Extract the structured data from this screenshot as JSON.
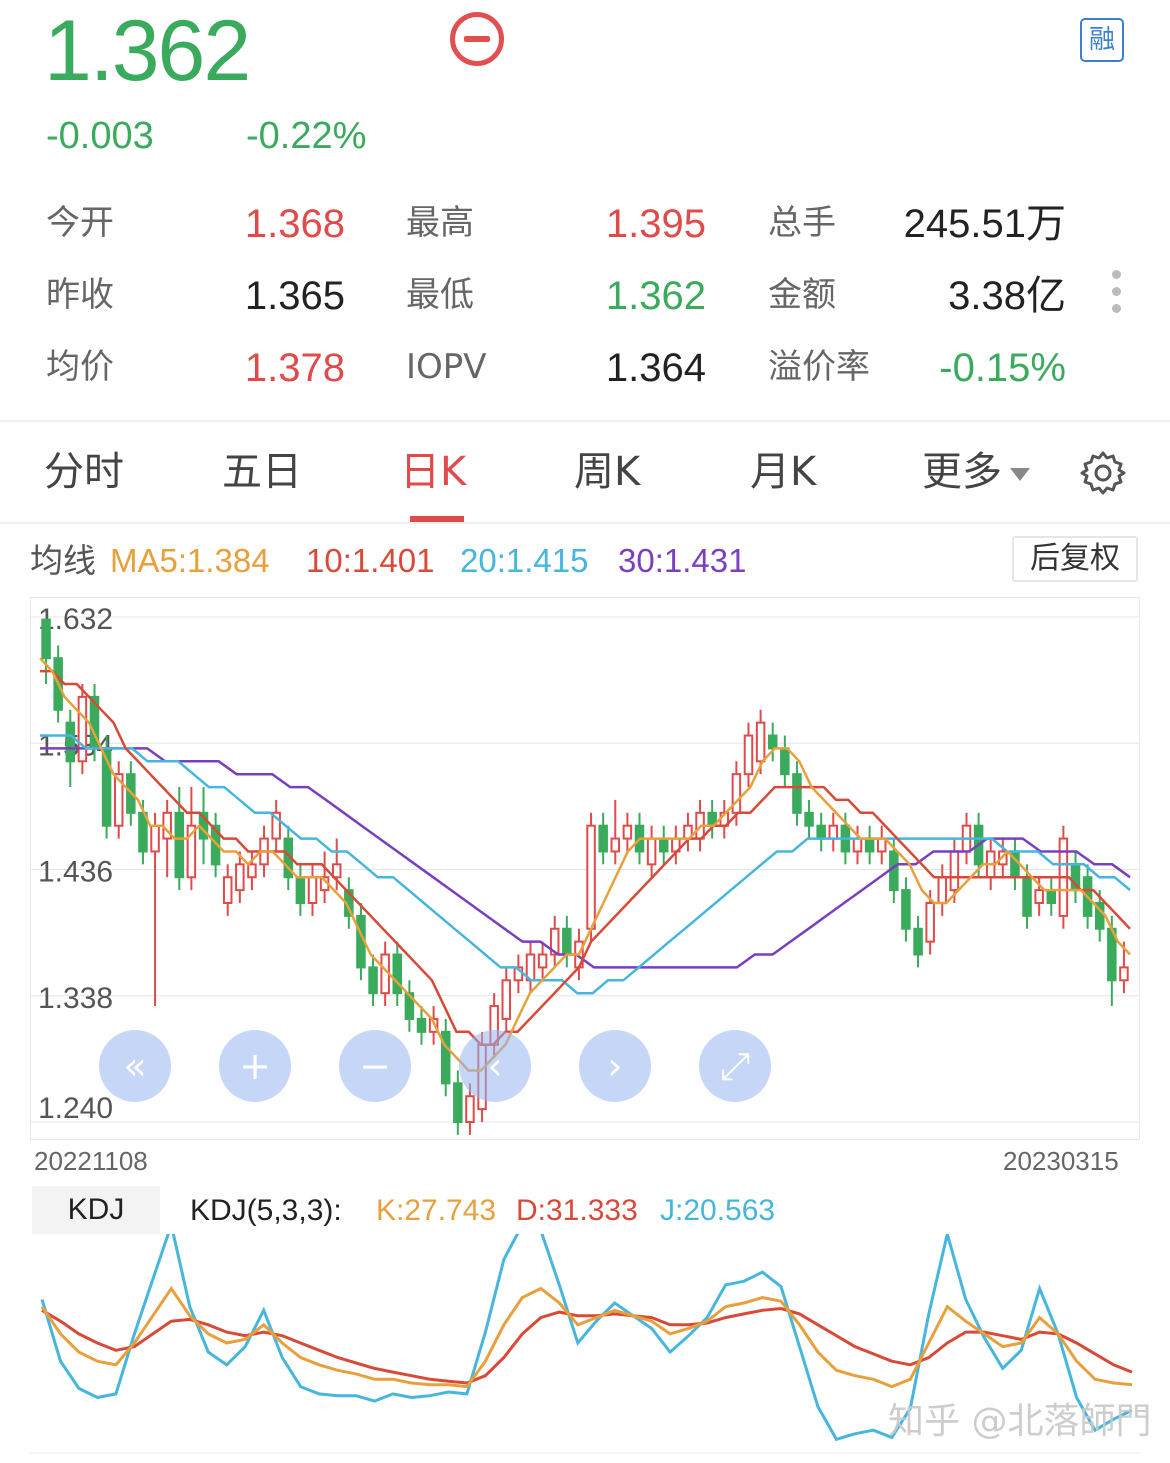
{
  "header": {
    "price": "1.362",
    "change": "-0.003",
    "change_pct": "-0.22%",
    "rong_badge": "融",
    "minus_icon": "minus-circle-icon"
  },
  "quote": {
    "open": {
      "label": "今开",
      "value": "1.368"
    },
    "prev_close": {
      "label": "昨收",
      "value": "1.365"
    },
    "avg": {
      "label": "均价",
      "value": "1.378"
    },
    "high": {
      "label": "最高",
      "value": "1.395"
    },
    "low": {
      "label": "最低",
      "value": "1.362"
    },
    "iopv": {
      "label": "IOPV",
      "value": "1.364"
    },
    "volume": {
      "label": "总手",
      "value": "245.51万"
    },
    "amount": {
      "label": "金额",
      "value": "3.38亿"
    },
    "premium": {
      "label": "溢价率",
      "value": "-0.15%"
    }
  },
  "tabs": [
    {
      "label": "分时"
    },
    {
      "label": "五日"
    },
    {
      "label": "日K"
    },
    {
      "label": "周K"
    },
    {
      "label": "月K"
    },
    {
      "label": "更多"
    }
  ],
  "ma_legend": {
    "title": "均线",
    "ma5": "MA5:1.384",
    "ma10": "10:1.401",
    "ma20": "20:1.415",
    "ma30": "30:1.431",
    "adjust_button": "后复权"
  },
  "colors": {
    "up": "#e04a4a",
    "down": "#3aaa5c",
    "ma5": "#e8a03c",
    "ma10": "#d84a38",
    "ma20": "#46b6de",
    "ma30": "#7a3fbf",
    "k": "#e8a03c",
    "d": "#d84a38",
    "j": "#46b6de"
  },
  "kdj_legend": {
    "tab": "KDJ",
    "params": "KDJ(5,3,3):",
    "k": "K:27.743",
    "d": "D:31.333",
    "j": "J:20.563"
  },
  "nav_controls": [
    "double-left-icon",
    "plus-icon",
    "minus-icon",
    "left-icon",
    "right-icon",
    "expand-icon"
  ],
  "watermark": "知乎 @北落師門",
  "chart_data": [
    {
      "type": "candlestick",
      "title": "",
      "x_start": "20221108",
      "x_end": "20230315",
      "y_ticks": [
        1.632,
        1.534,
        1.436,
        1.338,
        1.24
      ],
      "ylim": [
        1.24,
        1.632
      ],
      "candles": [
        [
          1.63,
          1.6,
          1.63,
          1.58
        ],
        [
          1.6,
          1.56,
          1.61,
          1.55
        ],
        [
          1.55,
          1.52,
          1.56,
          1.5
        ],
        [
          1.52,
          1.57,
          1.58,
          1.51
        ],
        [
          1.57,
          1.53,
          1.58,
          1.52
        ],
        [
          1.53,
          1.47,
          1.54,
          1.46
        ],
        [
          1.47,
          1.51,
          1.52,
          1.46
        ],
        [
          1.51,
          1.48,
          1.52,
          1.47
        ],
        [
          1.48,
          1.45,
          1.49,
          1.44
        ],
        [
          1.45,
          1.47,
          1.48,
          1.33
        ],
        [
          1.46,
          1.48,
          1.49,
          1.43
        ],
        [
          1.48,
          1.43,
          1.5,
          1.42
        ],
        [
          1.43,
          1.47,
          1.5,
          1.42
        ],
        [
          1.48,
          1.46,
          1.5,
          1.44
        ],
        [
          1.47,
          1.44,
          1.48,
          1.43
        ],
        [
          1.41,
          1.43,
          1.44,
          1.4
        ],
        [
          1.42,
          1.44,
          1.45,
          1.41
        ],
        [
          1.43,
          1.44,
          1.45,
          1.42
        ],
        [
          1.44,
          1.46,
          1.47,
          1.43
        ],
        [
          1.46,
          1.48,
          1.49,
          1.45
        ],
        [
          1.46,
          1.43,
          1.47,
          1.42
        ],
        [
          1.43,
          1.41,
          1.44,
          1.4
        ],
        [
          1.41,
          1.43,
          1.44,
          1.4
        ],
        [
          1.42,
          1.43,
          1.45,
          1.41
        ],
        [
          1.43,
          1.44,
          1.46,
          1.42
        ],
        [
          1.42,
          1.4,
          1.43,
          1.39
        ],
        [
          1.4,
          1.36,
          1.41,
          1.35
        ],
        [
          1.36,
          1.34,
          1.37,
          1.33
        ],
        [
          1.34,
          1.37,
          1.38,
          1.33
        ],
        [
          1.37,
          1.34,
          1.38,
          1.33
        ],
        [
          1.34,
          1.32,
          1.35,
          1.31
        ],
        [
          1.32,
          1.31,
          1.33,
          1.3
        ],
        [
          1.31,
          1.32,
          1.33,
          1.3
        ],
        [
          1.31,
          1.27,
          1.32,
          1.26
        ],
        [
          1.27,
          1.24,
          1.28,
          1.23
        ],
        [
          1.24,
          1.26,
          1.27,
          1.23
        ],
        [
          1.25,
          1.3,
          1.31,
          1.24
        ],
        [
          1.3,
          1.33,
          1.34,
          1.29
        ],
        [
          1.32,
          1.35,
          1.36,
          1.31
        ],
        [
          1.35,
          1.36,
          1.37,
          1.34
        ],
        [
          1.35,
          1.37,
          1.38,
          1.34
        ],
        [
          1.36,
          1.37,
          1.38,
          1.35
        ],
        [
          1.37,
          1.39,
          1.4,
          1.36
        ],
        [
          1.39,
          1.37,
          1.4,
          1.36
        ],
        [
          1.36,
          1.38,
          1.39,
          1.35
        ],
        [
          1.39,
          1.47,
          1.48,
          1.38
        ],
        [
          1.47,
          1.45,
          1.48,
          1.44
        ],
        [
          1.45,
          1.46,
          1.49,
          1.44
        ],
        [
          1.46,
          1.47,
          1.48,
          1.45
        ],
        [
          1.47,
          1.45,
          1.48,
          1.44
        ],
        [
          1.44,
          1.46,
          1.47,
          1.43
        ],
        [
          1.46,
          1.45,
          1.47,
          1.44
        ],
        [
          1.45,
          1.46,
          1.47,
          1.44
        ],
        [
          1.46,
          1.47,
          1.48,
          1.45
        ],
        [
          1.46,
          1.48,
          1.49,
          1.45
        ],
        [
          1.48,
          1.47,
          1.49,
          1.46
        ],
        [
          1.47,
          1.48,
          1.49,
          1.46
        ],
        [
          1.48,
          1.51,
          1.52,
          1.47
        ],
        [
          1.51,
          1.54,
          1.55,
          1.5
        ],
        [
          1.52,
          1.55,
          1.56,
          1.51
        ],
        [
          1.54,
          1.53,
          1.55,
          1.52
        ],
        [
          1.53,
          1.51,
          1.54,
          1.5
        ],
        [
          1.51,
          1.48,
          1.52,
          1.47
        ],
        [
          1.48,
          1.47,
          1.49,
          1.46
        ],
        [
          1.47,
          1.46,
          1.48,
          1.45
        ],
        [
          1.46,
          1.47,
          1.48,
          1.45
        ],
        [
          1.47,
          1.45,
          1.48,
          1.44
        ],
        [
          1.45,
          1.46,
          1.47,
          1.44
        ],
        [
          1.46,
          1.45,
          1.47,
          1.44
        ],
        [
          1.45,
          1.46,
          1.47,
          1.44
        ],
        [
          1.45,
          1.42,
          1.46,
          1.41
        ],
        [
          1.42,
          1.39,
          1.43,
          1.38
        ],
        [
          1.39,
          1.37,
          1.4,
          1.36
        ],
        [
          1.38,
          1.41,
          1.42,
          1.37
        ],
        [
          1.41,
          1.43,
          1.44,
          1.4
        ],
        [
          1.42,
          1.45,
          1.46,
          1.41
        ],
        [
          1.45,
          1.47,
          1.48,
          1.44
        ],
        [
          1.47,
          1.44,
          1.48,
          1.43
        ],
        [
          1.43,
          1.45,
          1.46,
          1.42
        ],
        [
          1.44,
          1.45,
          1.46,
          1.43
        ],
        [
          1.45,
          1.43,
          1.46,
          1.42
        ],
        [
          1.43,
          1.4,
          1.44,
          1.39
        ],
        [
          1.41,
          1.42,
          1.43,
          1.4
        ],
        [
          1.42,
          1.41,
          1.43,
          1.4
        ],
        [
          1.4,
          1.46,
          1.47,
          1.39
        ],
        [
          1.44,
          1.42,
          1.45,
          1.41
        ],
        [
          1.43,
          1.4,
          1.44,
          1.39
        ],
        [
          1.41,
          1.39,
          1.42,
          1.38
        ],
        [
          1.39,
          1.35,
          1.4,
          1.33
        ],
        [
          1.35,
          1.36,
          1.38,
          1.34
        ]
      ],
      "ma5": [
        1.6,
        1.59,
        1.57,
        1.56,
        1.55,
        1.53,
        1.51,
        1.5,
        1.49,
        1.47,
        1.47,
        1.46,
        1.46,
        1.47,
        1.46,
        1.45,
        1.45,
        1.44,
        1.45,
        1.45,
        1.44,
        1.43,
        1.43,
        1.43,
        1.42,
        1.41,
        1.39,
        1.37,
        1.36,
        1.35,
        1.34,
        1.33,
        1.32,
        1.3,
        1.29,
        1.28,
        1.28,
        1.29,
        1.3,
        1.32,
        1.34,
        1.35,
        1.36,
        1.37,
        1.37,
        1.39,
        1.41,
        1.43,
        1.45,
        1.46,
        1.46,
        1.46,
        1.46,
        1.46,
        1.47,
        1.47,
        1.48,
        1.49,
        1.5,
        1.52,
        1.53,
        1.53,
        1.52,
        1.5,
        1.49,
        1.48,
        1.47,
        1.46,
        1.46,
        1.46,
        1.45,
        1.44,
        1.42,
        1.41,
        1.41,
        1.42,
        1.43,
        1.44,
        1.44,
        1.45,
        1.44,
        1.43,
        1.42,
        1.42,
        1.42,
        1.42,
        1.41,
        1.4,
        1.38,
        1.37
      ],
      "ma10": [
        1.59,
        1.59,
        1.58,
        1.58,
        1.57,
        1.56,
        1.55,
        1.53,
        1.52,
        1.51,
        1.5,
        1.49,
        1.48,
        1.48,
        1.47,
        1.46,
        1.46,
        1.45,
        1.45,
        1.45,
        1.45,
        1.44,
        1.44,
        1.44,
        1.43,
        1.42,
        1.41,
        1.4,
        1.39,
        1.38,
        1.37,
        1.36,
        1.35,
        1.33,
        1.31,
        1.31,
        1.3,
        1.3,
        1.31,
        1.31,
        1.32,
        1.33,
        1.34,
        1.35,
        1.36,
        1.38,
        1.39,
        1.4,
        1.41,
        1.42,
        1.43,
        1.44,
        1.45,
        1.46,
        1.46,
        1.47,
        1.47,
        1.48,
        1.48,
        1.49,
        1.5,
        1.5,
        1.5,
        1.5,
        1.5,
        1.49,
        1.49,
        1.48,
        1.48,
        1.47,
        1.46,
        1.45,
        1.44,
        1.43,
        1.43,
        1.43,
        1.43,
        1.43,
        1.43,
        1.43,
        1.43,
        1.43,
        1.43,
        1.43,
        1.43,
        1.42,
        1.42,
        1.41,
        1.4,
        1.39
      ],
      "ma20": [
        1.54,
        1.54,
        1.54,
        1.53,
        1.53,
        1.53,
        1.53,
        1.52,
        1.52,
        1.52,
        1.51,
        1.5,
        1.5,
        1.49,
        1.48,
        1.48,
        1.47,
        1.46,
        1.46,
        1.45,
        1.45,
        1.44,
        1.43,
        1.43,
        1.42,
        1.41,
        1.4,
        1.39,
        1.38,
        1.37,
        1.36,
        1.36,
        1.35,
        1.35,
        1.35,
        1.34,
        1.34,
        1.35,
        1.35,
        1.36,
        1.37,
        1.38,
        1.39,
        1.4,
        1.41,
        1.42,
        1.43,
        1.44,
        1.45,
        1.45,
        1.46,
        1.46,
        1.46,
        1.46,
        1.46,
        1.46,
        1.46,
        1.46,
        1.46,
        1.46,
        1.46,
        1.46,
        1.46,
        1.45,
        1.45,
        1.45,
        1.44,
        1.44,
        1.44,
        1.43,
        1.43,
        1.42
      ],
      "ma30": [
        1.53,
        1.53,
        1.53,
        1.53,
        1.53,
        1.53,
        1.53,
        1.52,
        1.52,
        1.52,
        1.52,
        1.51,
        1.51,
        1.51,
        1.5,
        1.5,
        1.49,
        1.48,
        1.47,
        1.46,
        1.45,
        1.44,
        1.43,
        1.42,
        1.41,
        1.4,
        1.39,
        1.38,
        1.38,
        1.37,
        1.37,
        1.36,
        1.36,
        1.36,
        1.36,
        1.36,
        1.36,
        1.36,
        1.36,
        1.36,
        1.37,
        1.37,
        1.38,
        1.39,
        1.4,
        1.41,
        1.42,
        1.43,
        1.44,
        1.44,
        1.45,
        1.45,
        1.45,
        1.46,
        1.46,
        1.46,
        1.45,
        1.45,
        1.45,
        1.44,
        1.44,
        1.43
      ]
    },
    {
      "type": "line",
      "title": "",
      "name": "KDJ(5,3,3)",
      "ylim": [
        -10,
        110
      ],
      "series": [
        {
          "name": "K",
          "values": [
            70,
            55,
            45,
            40,
            38,
            50,
            65,
            80,
            65,
            55,
            50,
            52,
            60,
            50,
            42,
            38,
            35,
            33,
            30,
            30,
            28,
            27,
            27,
            26,
            40,
            60,
            75,
            80,
            72,
            60,
            64,
            68,
            65,
            62,
            55,
            58,
            62,
            70,
            72,
            75,
            73,
            60,
            45,
            35,
            32,
            30,
            26,
            30,
            50,
            70,
            62,
            55,
            48,
            50,
            64,
            55,
            40,
            30,
            28,
            27
          ]
        },
        {
          "name": "D",
          "values": [
            68,
            62,
            55,
            50,
            46,
            48,
            55,
            62,
            63,
            60,
            56,
            54,
            56,
            54,
            50,
            46,
            42,
            39,
            36,
            34,
            32,
            30,
            29,
            28,
            32,
            42,
            55,
            64,
            67,
            65,
            65,
            66,
            65,
            64,
            60,
            60,
            61,
            64,
            66,
            68,
            69,
            66,
            60,
            54,
            48,
            44,
            40,
            38,
            42,
            50,
            56,
            56,
            54,
            52,
            56,
            55,
            50,
            44,
            38,
            34
          ]
        },
        {
          "name": "J",
          "values": [
            74,
            40,
            25,
            20,
            22,
            55,
            85,
            115,
            70,
            45,
            38,
            48,
            68,
            42,
            26,
            22,
            21,
            21,
            18,
            22,
            20,
            21,
            23,
            22,
            56,
            96,
            115,
            112,
            82,
            50,
            62,
            72,
            65,
            58,
            45,
            54,
            64,
            82,
            84,
            89,
            81,
            48,
            15,
            -3,
            0,
            2,
            -2,
            14,
            66,
            110,
            74,
            53,
            36,
            46,
            80,
            55,
            20,
            2,
            8,
            13
          ]
        }
      ]
    }
  ]
}
